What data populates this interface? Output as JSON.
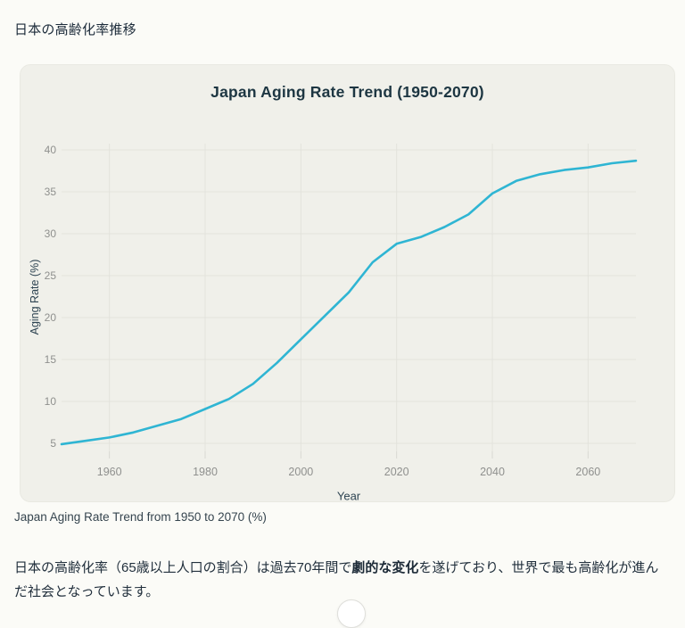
{
  "page": {
    "title": "日本の高齢化率推移",
    "caption": "Japan Aging Rate Trend from 1950 to 2070 (%)",
    "paragraph": {
      "before_bold": "日本の高齢化率（65歳以上人口の割合）は過去70年間で",
      "bold": "劇的な変化",
      "after_bold": "を遂げており、世界で最も高齢化が進んだ社会となっています。"
    }
  },
  "chart_data": {
    "type": "line",
    "title": "Japan Aging Rate Trend (1950-2070)",
    "xlabel": "Year",
    "ylabel": "Aging Rate (%)",
    "x": [
      1950,
      1955,
      1960,
      1965,
      1970,
      1975,
      1980,
      1985,
      1990,
      1995,
      2000,
      2005,
      2010,
      2015,
      2020,
      2025,
      2030,
      2035,
      2040,
      2045,
      2050,
      2055,
      2060,
      2065,
      2070
    ],
    "values": [
      4.9,
      5.3,
      5.7,
      6.3,
      7.1,
      7.9,
      9.1,
      10.3,
      12.1,
      14.6,
      17.4,
      20.2,
      23.0,
      26.6,
      28.8,
      29.6,
      30.8,
      32.3,
      34.8,
      36.3,
      37.1,
      37.6,
      37.9,
      38.4,
      38.7
    ],
    "xlim": [
      1950,
      2070
    ],
    "x_ticks": [
      1960,
      1980,
      2000,
      2020,
      2040,
      2060
    ],
    "y_ticks": [
      5,
      10,
      15,
      20,
      25,
      30,
      35,
      40
    ],
    "grid": true,
    "legend": "none",
    "line_color": "#2fb5d3"
  },
  "colors": {
    "page_bg": "#fbfbf7",
    "card_bg": "#f0f0ea",
    "grid": "#e3e3dc",
    "tick_mark": "#d9d9d3",
    "tick_text": "#8f908e",
    "axis_text": "#2e4452",
    "title_text": "#1d3642",
    "line": "#2fb5d3"
  }
}
